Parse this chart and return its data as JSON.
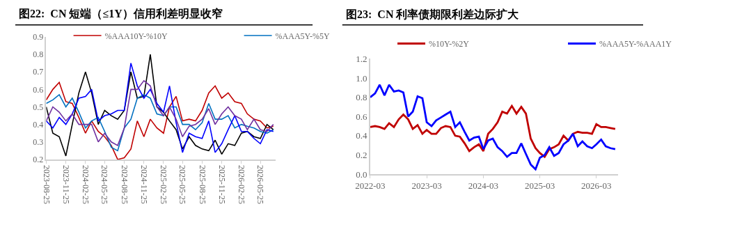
{
  "chart_data": [
    {
      "type": "line",
      "title": "图22:  CN 短端（≤1Y）信用利差明显收窄",
      "x": [
        "2023-08-25",
        "2023-09-25",
        "2023-10-25",
        "2023-11-25",
        "2023-12-25",
        "2024-01-25",
        "2024-02-25",
        "2024-03-25",
        "2024-04-25",
        "2024-05-25",
        "2024-06-25",
        "2024-07-25",
        "2024-08-25",
        "2024-09-25",
        "2024-10-25",
        "2024-11-25",
        "2024-12-25",
        "2025-01-25",
        "2025-02-25",
        "2025-03-25",
        "2025-04-25",
        "2025-05-25",
        "2025-06-25",
        "2025-07-25",
        "2025-08-25",
        "2025-09-25",
        "2025-10-25",
        "2025-11-25",
        "2025-12-25",
        "2026-01-25",
        "2026-02-25",
        "2026-03-25",
        "2026-04-25",
        "2026-05-25",
        "2026-06-25",
        "2026-07-25"
      ],
      "series": [
        {
          "name": "%AAA10Y-%10Y",
          "color": "#c00000",
          "values": [
            0.54,
            0.6,
            0.64,
            0.53,
            0.52,
            0.44,
            0.35,
            0.42,
            0.36,
            0.33,
            0.28,
            0.2,
            0.21,
            0.26,
            0.42,
            0.33,
            0.43,
            0.38,
            0.35,
            0.5,
            0.56,
            0.42,
            0.43,
            0.42,
            0.48,
            0.58,
            0.62,
            0.55,
            0.58,
            0.53,
            0.52,
            0.46,
            0.43,
            0.42,
            0.38,
            0.39
          ]
        },
        {
          "color": "#000000",
          "values": [
            0.5,
            0.35,
            0.33,
            0.22,
            0.4,
            0.58,
            0.7,
            0.58,
            0.4,
            0.48,
            0.45,
            0.43,
            0.48,
            0.7,
            0.55,
            0.56,
            0.8,
            0.5,
            0.47,
            0.42,
            0.37,
            0.26,
            0.33,
            0.28,
            0.26,
            0.25,
            0.31,
            0.23,
            0.29,
            0.28,
            0.35,
            0.36,
            0.33,
            0.32,
            0.4,
            0.37
          ]
        },
        {
          "name": "%AAA5Y-%5Y",
          "color": "#0070c0",
          "values": [
            0.52,
            0.54,
            0.57,
            0.5,
            0.55,
            0.47,
            0.38,
            0.42,
            0.44,
            0.36,
            0.27,
            0.25,
            0.38,
            0.43,
            0.55,
            0.57,
            0.55,
            0.46,
            0.45,
            0.5,
            0.5,
            0.4,
            0.4,
            0.37,
            0.41,
            0.52,
            0.43,
            0.43,
            0.45,
            0.38,
            0.4,
            0.39,
            0.38,
            0.36,
            0.35,
            0.37
          ]
        },
        {
          "color": "#0000ff",
          "values": [
            0.42,
            0.38,
            0.44,
            0.4,
            0.46,
            0.55,
            0.56,
            0.6,
            0.42,
            0.45,
            0.46,
            0.48,
            0.48,
            0.75,
            0.62,
            0.55,
            0.6,
            0.52,
            0.47,
            0.62,
            0.41,
            0.24,
            0.35,
            0.33,
            0.32,
            0.42,
            0.24,
            0.29,
            0.37,
            0.45,
            0.36,
            0.36,
            0.32,
            0.29,
            0.37,
            0.36
          ]
        },
        {
          "color": "#7030a0",
          "values": [
            0.42,
            0.5,
            0.47,
            0.42,
            0.46,
            0.4,
            0.4,
            0.4,
            0.3,
            0.35,
            0.3,
            0.28,
            0.38,
            0.6,
            0.6,
            0.65,
            0.62,
            0.5,
            0.45,
            0.5,
            0.43,
            0.33,
            0.39,
            0.4,
            0.43,
            0.49,
            0.4,
            0.46,
            0.5,
            0.45,
            0.43,
            0.37,
            0.43,
            0.37,
            0.36,
            0.4
          ]
        }
      ],
      "xlim": [
        "2023-08-25",
        "2026-08-05"
      ],
      "xticks": [
        "2023-08-25",
        "2023-11-25",
        "2024-02-25",
        "2024-05-25",
        "2024-08-25",
        "2024-11-25",
        "2025-02-25",
        "2025-05-25",
        "2025-08-25",
        "2025-11-25",
        "2026-02-25",
        "2026-05-25"
      ],
      "ylim": [
        0.2,
        0.9
      ],
      "yticks": [
        0.2,
        0.3,
        0.4,
        0.5,
        0.6,
        0.7,
        0.8,
        0.9
      ],
      "legend": "top",
      "grid": false
    },
    {
      "type": "line",
      "title": "图23:  CN 利率债期限利差边际扩大",
      "x": [
        "2022-03",
        "2022-04",
        "2022-05",
        "2022-06",
        "2022-07",
        "2022-08",
        "2022-09",
        "2022-10",
        "2022-11",
        "2022-12",
        "2023-01",
        "2023-02",
        "2023-03",
        "2023-04",
        "2023-05",
        "2023-06",
        "2023-07",
        "2023-08",
        "2023-09",
        "2023-10",
        "2023-11",
        "2023-12",
        "2024-01",
        "2024-02",
        "2024-03",
        "2024-04",
        "2024-05",
        "2024-06",
        "2024-07",
        "2024-08",
        "2024-09",
        "2024-10",
        "2024-11",
        "2024-12",
        "2025-01",
        "2025-02",
        "2025-03",
        "2025-04",
        "2025-05",
        "2025-06",
        "2025-07",
        "2025-08",
        "2025-09",
        "2025-10",
        "2025-11",
        "2025-12",
        "2026-01",
        "2026-02",
        "2026-03",
        "2026-04",
        "2026-05",
        "2026-06",
        "2026-07"
      ],
      "series": [
        {
          "name": "%10Y-%2Y",
          "color": "#c00000",
          "values": [
            0.49,
            0.5,
            0.49,
            0.47,
            0.53,
            0.49,
            0.57,
            0.62,
            0.57,
            0.47,
            0.51,
            0.42,
            0.46,
            0.42,
            0.42,
            0.48,
            0.5,
            0.49,
            0.4,
            0.39,
            0.32,
            0.24,
            0.28,
            0.31,
            0.24,
            0.42,
            0.47,
            0.54,
            0.65,
            0.63,
            0.71,
            0.63,
            0.7,
            0.63,
            0.37,
            0.27,
            0.22,
            0.18,
            0.26,
            0.28,
            0.31,
            0.4,
            0.35,
            0.42,
            0.44,
            0.43,
            0.43,
            0.42,
            0.52,
            0.49,
            0.49,
            0.48,
            0.47
          ]
        },
        {
          "name": "%AAA5Y-%AAA1Y",
          "color": "#0000ff",
          "values": [
            0.8,
            0.84,
            0.93,
            0.82,
            0.93,
            0.86,
            0.87,
            0.85,
            0.6,
            0.65,
            0.81,
            0.79,
            0.54,
            0.5,
            0.56,
            0.59,
            0.62,
            0.65,
            0.49,
            0.54,
            0.44,
            0.35,
            0.38,
            0.39,
            0.26,
            0.35,
            0.37,
            0.28,
            0.24,
            0.18,
            0.22,
            0.22,
            0.32,
            0.21,
            0.1,
            0.05,
            0.17,
            0.2,
            0.28,
            0.19,
            0.22,
            0.31,
            0.35,
            0.42,
            0.29,
            0.34,
            0.29,
            0.27,
            0.31,
            0.36,
            0.29,
            0.27,
            0.26
          ]
        }
      ],
      "xlim": [
        "2022-03-01",
        "2026-07-20"
      ],
      "xticks": [
        "2022-03",
        "2023-03",
        "2024-03",
        "2025-03",
        "2026-03"
      ],
      "ylim": [
        0.0,
        1.2
      ],
      "yticks": [
        {
          "value": 0.0,
          "label": "0.0"
        },
        0.2,
        0.4,
        0.6,
        0.8,
        {
          "value": 1.0,
          "label": "1.0"
        },
        1.2
      ],
      "legend": "top",
      "grid": false
    }
  ]
}
